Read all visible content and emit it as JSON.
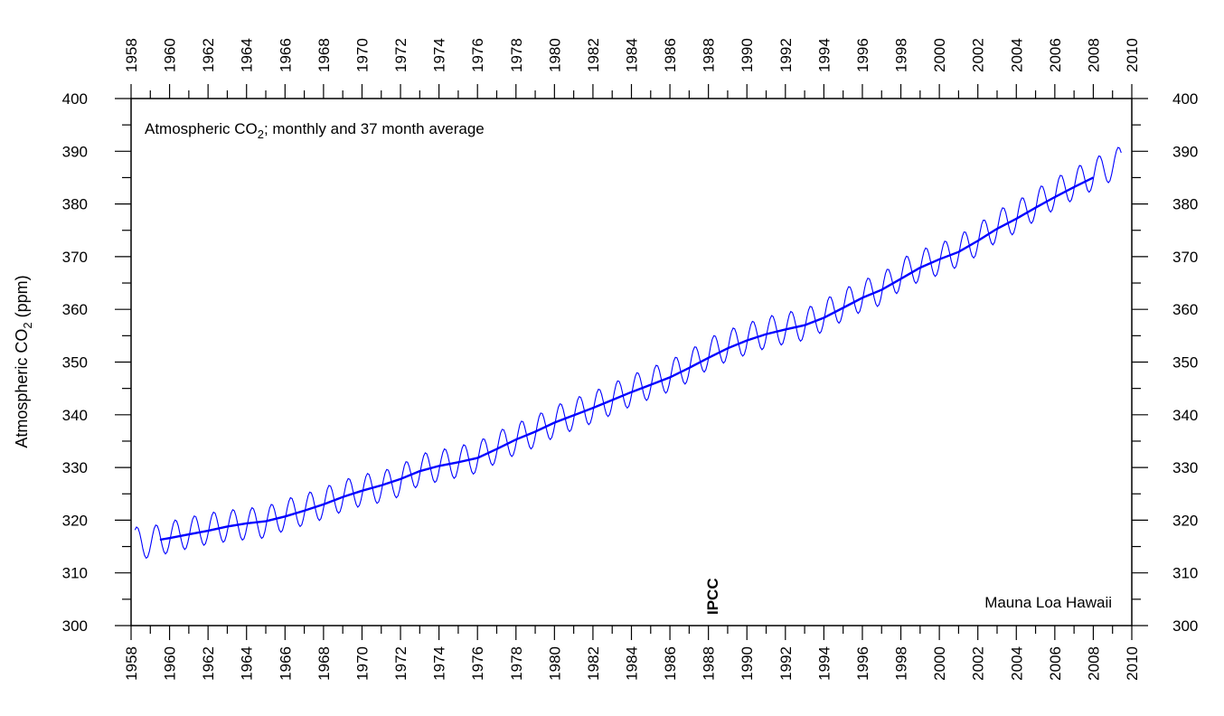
{
  "chart_data": {
    "type": "line",
    "title_prefix": "Atmospheric CO",
    "title_sub": "2",
    "title_suffix": "; monthly and 37 month average",
    "ylabel_prefix": "Atmospheric CO",
    "ylabel_sub": "2",
    "ylabel_suffix": " (ppm)",
    "xlim": [
      1958,
      2010
    ],
    "ylim": [
      300,
      400
    ],
    "x_ticks": [
      1958,
      1960,
      1962,
      1964,
      1966,
      1968,
      1970,
      1972,
      1974,
      1976,
      1978,
      1980,
      1982,
      1984,
      1986,
      1988,
      1990,
      1992,
      1994,
      1996,
      1998,
      2000,
      2002,
      2004,
      2006,
      2008,
      2010
    ],
    "y_ticks": [
      300,
      310,
      320,
      330,
      340,
      350,
      360,
      370,
      380,
      390,
      400
    ],
    "grid": false,
    "line_color": "#0000ff",
    "annotations": {
      "ipcc_label": "IPCC",
      "ipcc_year": 1988.2,
      "station_label": "Mauna Loa Hawaii"
    },
    "series": [
      {
        "kind": "monthly",
        "description_x": "decimal year",
        "x": [
          1958.2,
          1959,
          1960,
          1961,
          1962,
          1963,
          1964,
          1965,
          1966,
          1967,
          1968,
          1969,
          1970,
          1971,
          1972,
          1973,
          1974,
          1975,
          1976,
          1977,
          1978,
          1979,
          1980,
          1981,
          1982,
          1983,
          1984,
          1985,
          1986,
          1987,
          1988,
          1989,
          1990,
          1991,
          1992,
          1993,
          1994,
          1995,
          1996,
          1997,
          1998,
          1999,
          2000,
          2001,
          2002,
          2003,
          2004,
          2005,
          2006,
          2007,
          2008,
          2009,
          2009.5
        ],
        "y": [
          315.7,
          315.8,
          316.8,
          317.6,
          318.4,
          318.9,
          319.3,
          319.6,
          321.0,
          322.0,
          323.2,
          324.6,
          325.7,
          326.3,
          327.5,
          329.6,
          330.3,
          331.1,
          331.9,
          333.8,
          335.4,
          336.8,
          338.7,
          340.1,
          341.4,
          343.0,
          344.6,
          346.0,
          347.4,
          349.2,
          351.6,
          353.1,
          354.4,
          355.6,
          356.4,
          357.1,
          358.8,
          360.8,
          362.6,
          363.8,
          366.6,
          368.3,
          369.5,
          371.1,
          373.2,
          375.8,
          377.5,
          379.8,
          381.9,
          383.8,
          385.6,
          387.4,
          388.0
        ],
        "seasonal_amplitude_ppm": 3.0
      },
      {
        "kind": "37-month average",
        "x": [
          1959.5,
          1960,
          1961,
          1962,
          1963,
          1964,
          1965,
          1966,
          1967,
          1968,
          1969,
          1970,
          1971,
          1972,
          1973,
          1974,
          1975,
          1976,
          1977,
          1978,
          1979,
          1980,
          1981,
          1982,
          1983,
          1984,
          1985,
          1986,
          1987,
          1988,
          1989,
          1990,
          1991,
          1992,
          1993,
          1994,
          1995,
          1996,
          1997,
          1998,
          1999,
          2000,
          2001,
          2002,
          2003,
          2004,
          2005,
          2006,
          2007,
          2008
        ],
        "y": [
          316.3,
          316.6,
          317.3,
          318.0,
          318.8,
          319.4,
          319.8,
          320.7,
          321.8,
          323.0,
          324.4,
          325.6,
          326.6,
          327.8,
          329.3,
          330.3,
          331.0,
          331.8,
          333.5,
          335.3,
          336.8,
          338.5,
          339.9,
          341.3,
          342.8,
          344.3,
          345.7,
          347.1,
          348.9,
          350.8,
          352.6,
          354.1,
          355.3,
          356.2,
          357.0,
          358.4,
          360.3,
          362.2,
          363.7,
          365.8,
          367.9,
          369.5,
          370.9,
          373.0,
          375.3,
          377.2,
          379.3,
          381.3,
          383.2,
          385.0
        ]
      }
    ]
  }
}
